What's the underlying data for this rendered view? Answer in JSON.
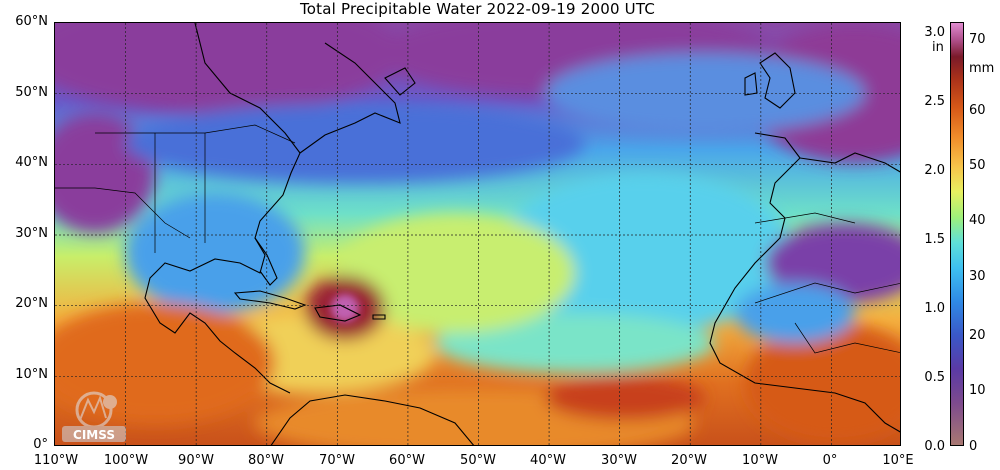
{
  "title": "Total Precipitable Water  2022-09-19 2000 UTC",
  "map": {
    "lat_labels": [
      "60°N",
      "50°N",
      "40°N",
      "30°N",
      "20°N",
      "10°N",
      "0°"
    ],
    "lon_labels": [
      "110°W",
      "100°W",
      "90°W",
      "80°W",
      "70°W",
      "60°W",
      "50°W",
      "40°W",
      "30°W",
      "20°W",
      "10°W",
      "0°",
      "10°E"
    ],
    "lat_range": [
      0,
      60
    ],
    "lon_range": [
      -110,
      10
    ],
    "grid": true
  },
  "colorbar": {
    "unit_in": "in",
    "unit_mm": "mm",
    "in_ticks": [
      "3.0",
      "2.5",
      "2.0",
      "1.5",
      "1.0",
      "0.5",
      "0.0"
    ],
    "mm_ticks": [
      "70",
      "60",
      "50",
      "40",
      "30",
      "20",
      "10",
      "0"
    ]
  },
  "logo": {
    "text": "CIMSS"
  },
  "colors": {
    "dry": "#7d3f9a",
    "moderate": "#3ec0f0",
    "moist": "#f08c2a",
    "very_moist": "#8a1c2c"
  }
}
